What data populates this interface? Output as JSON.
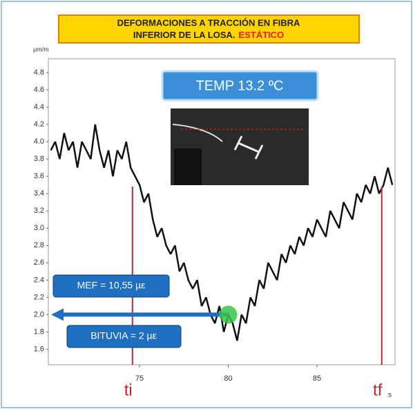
{
  "chart_data": {
    "type": "line",
    "title_line1": "DEFORMACIONES A TRACCIÓN EN FIBRA",
    "title_line2": "INFERIOR DE LA LOSA.",
    "title_highlight": "ESTÁTICO",
    "y_unit": "μm/m",
    "x_unit": "s",
    "x": [
      70,
      70.25,
      70.5,
      70.75,
      71,
      71.25,
      71.5,
      71.75,
      72,
      72.25,
      72.5,
      72.75,
      73,
      73.25,
      73.5,
      73.75,
      74,
      74.25,
      74.5,
      74.75,
      75,
      75.25,
      75.5,
      75.75,
      76,
      76.25,
      76.5,
      76.75,
      77,
      77.25,
      77.5,
      77.75,
      78,
      78.25,
      78.5,
      78.75,
      79,
      79.25,
      79.5,
      79.75,
      80,
      80.25,
      80.5,
      80.75,
      81,
      81.25,
      81.5,
      81.75,
      82,
      82.25,
      82.5,
      82.75,
      83,
      83.25,
      83.5,
      83.75,
      84,
      84.25,
      84.5,
      84.75,
      85,
      85.25,
      85.5,
      85.75,
      86,
      86.25,
      86.5,
      86.75,
      87,
      87.25,
      87.5,
      87.75,
      88,
      88.25,
      88.5,
      88.75,
      89,
      89.25
    ],
    "values": [
      3.9,
      4.0,
      3.8,
      4.1,
      3.9,
      4.0,
      3.7,
      4.0,
      3.9,
      3.8,
      4.2,
      3.9,
      3.7,
      3.9,
      3.6,
      3.9,
      3.8,
      4.0,
      3.7,
      3.6,
      3.5,
      3.3,
      3.4,
      3.1,
      2.9,
      3.0,
      2.8,
      2.7,
      2.8,
      2.5,
      2.6,
      2.4,
      2.3,
      2.4,
      2.1,
      2.2,
      2.0,
      1.9,
      2.1,
      1.8,
      2.0,
      1.9,
      1.7,
      2.0,
      1.9,
      2.2,
      2.1,
      2.4,
      2.3,
      2.6,
      2.5,
      2.4,
      2.7,
      2.6,
      2.8,
      2.7,
      2.9,
      2.8,
      3.0,
      2.9,
      3.1,
      3.0,
      2.9,
      3.2,
      3.1,
      3.0,
      3.3,
      3.2,
      3.1,
      3.4,
      3.3,
      3.5,
      3.4,
      3.6,
      3.4,
      3.5,
      3.7,
      3.5
    ],
    "color": "#111111",
    "xlim": [
      69.86,
      89.4
    ],
    "ylim": [
      1.42,
      4.96
    ],
    "xticks": [
      75,
      80,
      85
    ],
    "yticks": [
      1.6,
      1.8,
      {
        "value": 2,
        "label": "2.0"
      },
      2.2,
      2.4,
      2.6,
      2.8,
      {
        "value": 3,
        "label": "3.0"
      },
      3.2,
      3.4,
      3.6,
      3.8,
      {
        "value": 4,
        "label": "4.0"
      },
      4.2,
      4.4,
      4.6,
      4.8
    ],
    "markers": [
      {
        "label": "ti",
        "x": 74.6
      },
      {
        "label": "tf",
        "x": 88.65
      }
    ],
    "marker_color": "#c0282d",
    "annotations": {
      "temp": "TEMP 13.2 ºC",
      "mef": "MEF = 10,55 µε",
      "bituvia": "BITUVIA = 2 µε"
    },
    "highlight": {
      "x": 80,
      "y": 2
    }
  }
}
